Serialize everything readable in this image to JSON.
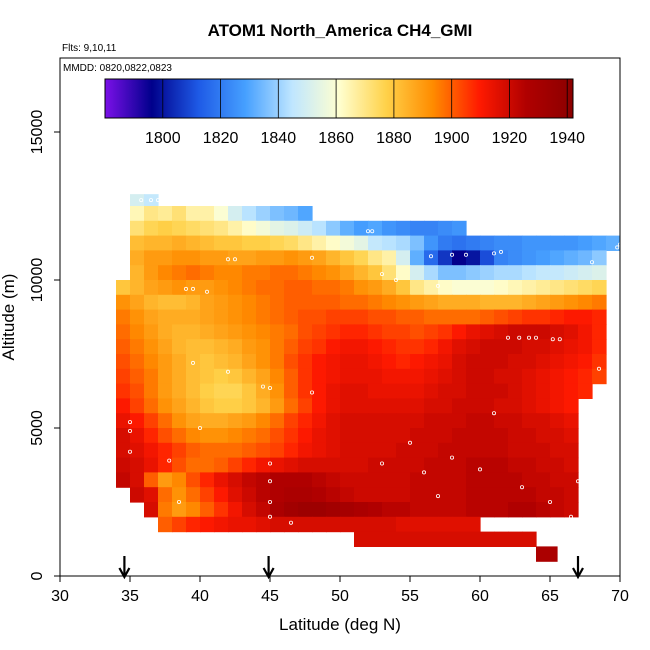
{
  "chart_data": {
    "type": "heatmap",
    "title": "ATOM1 North_America CH4_GMI",
    "annotations": {
      "flights": "Flts: 9,10,11",
      "dates": "MMDD: 0820,0822,0823"
    },
    "xlabel": "Latitude (deg N)",
    "ylabel": "Altitude (m)",
    "xlim": [
      30,
      70
    ],
    "ylim": [
      0,
      17500
    ],
    "x_ticks": [
      "30",
      "35",
      "40",
      "45",
      "50",
      "55",
      "60",
      "65",
      "70"
    ],
    "y_ticks": [
      "0",
      "5000",
      "10000",
      "15000"
    ],
    "colorbar": {
      "min": 1780,
      "max": 1942,
      "tick_labels": [
        "1800",
        "1820",
        "1840",
        "1860",
        "1880",
        "1900",
        "1920",
        "1940"
      ],
      "colors": [
        "#7b10e8",
        "#00008b",
        "#1e5ae6",
        "#46a0ff",
        "#bfe6ff",
        "#ffffd0",
        "#ffd24a",
        "#ff8c00",
        "#ff1a00",
        "#b00000",
        "#8b0000"
      ]
    },
    "arrows_at_latitude": [
      34.6,
      44.9,
      67.0
    ],
    "layers": [
      {
        "alt_bottom": 12500,
        "alt_top": 12900,
        "lat_start": 35.0,
        "lat_end": 37.0,
        "values": [
          1850,
          1846
        ]
      },
      {
        "alt_bottom": 12000,
        "alt_top": 12500,
        "lat_start": 35.0,
        "lat_end": 48.0,
        "values": [
          1864,
          1870,
          1868,
          1872,
          1866,
          1866,
          1860,
          1850,
          1844,
          1840,
          1836,
          1834,
          1830
        ]
      },
      {
        "alt_bottom": 11500,
        "alt_top": 12000,
        "lat_start": 35.0,
        "lat_end": 59.0,
        "values": [
          1872,
          1876,
          1878,
          1876,
          1874,
          1872,
          1870,
          1866,
          1862,
          1858,
          1854,
          1852,
          1848,
          1844,
          1838,
          1832,
          1828,
          1830,
          1826,
          1824,
          1822,
          1822,
          1824,
          1826
        ]
      },
      {
        "alt_bottom": 11000,
        "alt_top": 11500,
        "lat_start": 35.0,
        "lat_end": 70.0,
        "values": [
          1882,
          1884,
          1884,
          1886,
          1884,
          1882,
          1880,
          1880,
          1878,
          1878,
          1876,
          1874,
          1870,
          1866,
          1862,
          1858,
          1854,
          1846,
          1844,
          1842,
          1836,
          1826,
          1820,
          1818,
          1820,
          1822,
          1824,
          1824,
          1826,
          1826,
          1826,
          1826,
          1828,
          1830,
          1832
        ]
      },
      {
        "alt_bottom": 10500,
        "alt_top": 11000,
        "lat_start": 35.0,
        "lat_end": 69.0,
        "values": [
          1886,
          1890,
          1890,
          1892,
          1892,
          1890,
          1890,
          1888,
          1888,
          1890,
          1890,
          1892,
          1890,
          1888,
          1884,
          1880,
          1876,
          1870,
          1866,
          1850,
          1832,
          1816,
          1806,
          1796,
          1800,
          1810,
          1822,
          1824,
          1826,
          1828,
          1830,
          1832,
          1834,
          1838
        ]
      },
      {
        "alt_bottom": 10000,
        "alt_top": 10500,
        "lat_start": 35.0,
        "lat_end": 69.0,
        "values": [
          1884,
          1890,
          1894,
          1896,
          1898,
          1896,
          1894,
          1894,
          1896,
          1896,
          1898,
          1898,
          1896,
          1894,
          1892,
          1888,
          1884,
          1880,
          1872,
          1862,
          1850,
          1842,
          1836,
          1836,
          1838,
          1840,
          1842,
          1842,
          1844,
          1846,
          1846,
          1848,
          1850,
          1852
        ]
      },
      {
        "alt_bottom": 9500,
        "alt_top": 10000,
        "lat_start": 34.0,
        "lat_end": 69.0,
        "values": [
          1880,
          1884,
          1888,
          1890,
          1892,
          1890,
          1890,
          1892,
          1894,
          1896,
          1898,
          1898,
          1900,
          1900,
          1898,
          1898,
          1896,
          1892,
          1890,
          1886,
          1880,
          1870,
          1866,
          1862,
          1860,
          1860,
          1860,
          1862,
          1864,
          1866,
          1868,
          1870,
          1872,
          1874,
          1876
        ]
      },
      {
        "alt_bottom": 9000,
        "alt_top": 9500,
        "lat_start": 34.0,
        "lat_end": 69.0,
        "values": [
          1892,
          1888,
          1884,
          1882,
          1882,
          1884,
          1888,
          1890,
          1892,
          1894,
          1896,
          1898,
          1900,
          1900,
          1900,
          1900,
          1898,
          1898,
          1896,
          1894,
          1892,
          1890,
          1888,
          1886,
          1886,
          1886,
          1884,
          1884,
          1884,
          1886,
          1888,
          1890,
          1892,
          1894,
          1896
        ]
      },
      {
        "alt_bottom": 8500,
        "alt_top": 9000,
        "lat_start": 34.0,
        "lat_end": 69.0,
        "values": [
          1896,
          1892,
          1888,
          1886,
          1886,
          1886,
          1888,
          1890,
          1892,
          1894,
          1896,
          1898,
          1900,
          1902,
          1902,
          1904,
          1904,
          1904,
          1902,
          1902,
          1900,
          1900,
          1898,
          1898,
          1898,
          1898,
          1900,
          1902,
          1904,
          1906,
          1906,
          1908,
          1910,
          1910,
          1908
        ]
      },
      {
        "alt_bottom": 8000,
        "alt_top": 8500,
        "lat_start": 34.0,
        "lat_end": 69.0,
        "values": [
          1898,
          1894,
          1890,
          1886,
          1884,
          1884,
          1886,
          1888,
          1890,
          1892,
          1894,
          1896,
          1898,
          1902,
          1904,
          1906,
          1908,
          1908,
          1906,
          1904,
          1904,
          1902,
          1904,
          1906,
          1910,
          1914,
          1916,
          1918,
          1920,
          1920,
          1920,
          1918,
          1916,
          1912,
          1908
        ]
      },
      {
        "alt_bottom": 7500,
        "alt_top": 8000,
        "lat_start": 34.0,
        "lat_end": 69.0,
        "values": [
          1900,
          1896,
          1892,
          1888,
          1884,
          1882,
          1882,
          1884,
          1886,
          1890,
          1892,
          1896,
          1900,
          1904,
          1906,
          1910,
          1912,
          1912,
          1910,
          1908,
          1906,
          1906,
          1908,
          1912,
          1916,
          1918,
          1920,
          1920,
          1920,
          1918,
          1918,
          1916,
          1914,
          1912,
          1908
        ]
      },
      {
        "alt_bottom": 7000,
        "alt_top": 7500,
        "lat_start": 34.0,
        "lat_end": 69.0,
        "values": [
          1902,
          1898,
          1894,
          1890,
          1886,
          1882,
          1880,
          1882,
          1884,
          1888,
          1892,
          1896,
          1902,
          1906,
          1910,
          1912,
          1914,
          1914,
          1912,
          1910,
          1908,
          1910,
          1912,
          1914,
          1918,
          1920,
          1920,
          1920,
          1918,
          1918,
          1916,
          1914,
          1912,
          1910,
          1906
        ]
      },
      {
        "alt_bottom": 6500,
        "alt_top": 7000,
        "lat_start": 34.0,
        "lat_end": 69.0,
        "values": [
          1904,
          1900,
          1896,
          1890,
          1886,
          1882,
          1880,
          1878,
          1880,
          1884,
          1888,
          1894,
          1900,
          1906,
          1910,
          1912,
          1914,
          1914,
          1914,
          1912,
          1912,
          1912,
          1914,
          1916,
          1918,
          1920,
          1920,
          1918,
          1918,
          1916,
          1914,
          1912,
          1910,
          1908,
          1904
        ]
      },
      {
        "alt_bottom": 6000,
        "alt_top": 6500,
        "lat_start": 34.0,
        "lat_end": 68.0,
        "values": [
          1906,
          1902,
          1896,
          1890,
          1886,
          1882,
          1878,
          1876,
          1876,
          1880,
          1886,
          1892,
          1900,
          1906,
          1910,
          1914,
          1916,
          1916,
          1914,
          1914,
          1914,
          1914,
          1916,
          1918,
          1918,
          1920,
          1920,
          1920,
          1918,
          1916,
          1914,
          1912,
          1910,
          1908
        ]
      },
      {
        "alt_bottom": 5500,
        "alt_top": 6000,
        "lat_start": 34.0,
        "lat_end": 67.0,
        "values": [
          1910,
          1904,
          1898,
          1892,
          1888,
          1884,
          1880,
          1878,
          1878,
          1880,
          1884,
          1890,
          1898,
          1904,
          1910,
          1914,
          1916,
          1916,
          1916,
          1916,
          1916,
          1916,
          1918,
          1918,
          1920,
          1920,
          1920,
          1918,
          1918,
          1916,
          1914,
          1912,
          1910
        ]
      },
      {
        "alt_bottom": 5000,
        "alt_top": 5500,
        "lat_start": 34.0,
        "lat_end": 67.0,
        "values": [
          1914,
          1910,
          1904,
          1898,
          1892,
          1888,
          1886,
          1886,
          1888,
          1890,
          1894,
          1898,
          1904,
          1908,
          1912,
          1916,
          1918,
          1918,
          1918,
          1918,
          1918,
          1918,
          1920,
          1920,
          1920,
          1922,
          1922,
          1920,
          1920,
          1918,
          1918,
          1916,
          1914
        ]
      },
      {
        "alt_bottom": 4500,
        "alt_top": 5000,
        "lat_start": 34.0,
        "lat_end": 67.0,
        "values": [
          1918,
          1914,
          1908,
          1902,
          1898,
          1894,
          1892,
          1892,
          1894,
          1896,
          1898,
          1902,
          1906,
          1910,
          1914,
          1916,
          1918,
          1918,
          1918,
          1918,
          1918,
          1920,
          1920,
          1920,
          1922,
          1922,
          1922,
          1922,
          1920,
          1920,
          1918,
          1918,
          1916
        ]
      },
      {
        "alt_bottom": 4000,
        "alt_top": 4500,
        "lat_start": 34.0,
        "lat_end": 67.0,
        "values": [
          1918,
          1916,
          1912,
          1908,
          1904,
          1900,
          1898,
          1898,
          1898,
          1900,
          1902,
          1904,
          1908,
          1912,
          1914,
          1916,
          1918,
          1918,
          1918,
          1918,
          1920,
          1920,
          1920,
          1922,
          1922,
          1922,
          1922,
          1922,
          1920,
          1920,
          1920,
          1918,
          1918
        ]
      },
      {
        "alt_bottom": 3500,
        "alt_top": 4000,
        "lat_start": 34.0,
        "lat_end": 67.0,
        "values": [
          1920,
          1918,
          1914,
          1908,
          1902,
          1898,
          1898,
          1900,
          1904,
          1908,
          1912,
          1914,
          1916,
          1918,
          1918,
          1918,
          1918,
          1918,
          1920,
          1920,
          1920,
          1920,
          1922,
          1922,
          1922,
          1924,
          1924,
          1924,
          1922,
          1922,
          1920,
          1920,
          1918
        ]
      },
      {
        "alt_bottom": 3000,
        "alt_top": 3500,
        "lat_start": 34.0,
        "lat_end": 67.0,
        "values": [
          1922,
          1918,
          1900,
          1890,
          1894,
          1902,
          1908,
          1914,
          1918,
          1922,
          1924,
          1926,
          1926,
          1926,
          1924,
          1922,
          1920,
          1920,
          1920,
          1920,
          1920,
          1922,
          1922,
          1922,
          1922,
          1924,
          1924,
          1924,
          1924,
          1922,
          1922,
          1920,
          1920
        ]
      },
      {
        "alt_bottom": 2500,
        "alt_top": 3000,
        "lat_start": 35.0,
        "lat_end": 67.0,
        "values": [
          1920,
          1916,
          1898,
          1892,
          1898,
          1904,
          1910,
          1916,
          1920,
          1924,
          1926,
          1928,
          1928,
          1926,
          1924,
          1922,
          1920,
          1920,
          1920,
          1920,
          1922,
          1922,
          1922,
          1922,
          1924,
          1924,
          1924,
          1924,
          1924,
          1922,
          1922,
          1920
        ]
      },
      {
        "alt_bottom": 2000,
        "alt_top": 2500,
        "lat_start": 36.0,
        "lat_end": 67.0,
        "values": [
          1918,
          1896,
          1890,
          1894,
          1900,
          1906,
          1912,
          1918,
          1922,
          1928,
          1932,
          1934,
          1934,
          1932,
          1930,
          1928,
          1926,
          1924,
          1924,
          1922,
          1922,
          1922,
          1922,
          1924,
          1924,
          1924,
          1926,
          1926,
          1924,
          1922,
          1920
        ]
      },
      {
        "alt_bottom": 1500,
        "alt_top": 2000,
        "lat_start": 37.0,
        "lat_end": 60.0,
        "values": [
          1900,
          1904,
          1908,
          1910,
          1912,
          1914,
          1914,
          1916,
          1918,
          1918,
          1918,
          1918,
          1918,
          1918,
          1918,
          1918,
          1918,
          1916,
          1916,
          1916,
          1916,
          1916,
          1916
        ]
      },
      {
        "alt_bottom": 1000,
        "alt_top": 1500,
        "lat_start": 51.0,
        "lat_end": 64.0,
        "values": [
          1918,
          1918,
          1918,
          1918,
          1918,
          1918,
          1918,
          1918,
          1918,
          1918,
          1918,
          1918,
          1918
        ]
      },
      {
        "alt_bottom": 500,
        "alt_top": 1000,
        "lat_start": 64.0,
        "lat_end": 65.5,
        "values": [
          1928
        ]
      }
    ],
    "observations": [
      [
        35.8,
        12700
      ],
      [
        36.5,
        12700
      ],
      [
        37.0,
        12700
      ],
      [
        52.0,
        11650
      ],
      [
        52.3,
        11650
      ],
      [
        56.5,
        10800
      ],
      [
        58.0,
        10850
      ],
      [
        59.0,
        10850
      ],
      [
        61.0,
        10900
      ],
      [
        61.5,
        10950
      ],
      [
        68.0,
        10600
      ],
      [
        69.8,
        11100
      ],
      [
        70.0,
        11200
      ],
      [
        42.0,
        10700
      ],
      [
        42.5,
        10700
      ],
      [
        48.0,
        10750
      ],
      [
        39.0,
        9700
      ],
      [
        39.5,
        9700
      ],
      [
        40.5,
        9600
      ],
      [
        53.0,
        10200
      ],
      [
        54.0,
        10000
      ],
      [
        57.0,
        9800
      ],
      [
        62.0,
        8050
      ],
      [
        62.8,
        8050
      ],
      [
        63.5,
        8050
      ],
      [
        64.0,
        8050
      ],
      [
        65.2,
        8000
      ],
      [
        65.7,
        8000
      ],
      [
        68.5,
        7000
      ],
      [
        39.5,
        7200
      ],
      [
        42.0,
        6900
      ],
      [
        44.5,
        6400
      ],
      [
        45.0,
        6350
      ],
      [
        48.0,
        6200
      ],
      [
        35.0,
        5200
      ],
      [
        35.0,
        4900
      ],
      [
        35.0,
        4200
      ],
      [
        37.8,
        3900
      ],
      [
        38.5,
        2500
      ],
      [
        40.0,
        5000
      ],
      [
        45.0,
        3800
      ],
      [
        45.0,
        3200
      ],
      [
        45.0,
        2500
      ],
      [
        45.0,
        2000
      ],
      [
        46.5,
        1800
      ],
      [
        53.0,
        3800
      ],
      [
        55.0,
        4500
      ],
      [
        56.0,
        3500
      ],
      [
        57.0,
        2700
      ],
      [
        58.0,
        4000
      ],
      [
        60.0,
        3600
      ],
      [
        60.5,
        1800
      ],
      [
        61.0,
        5500
      ],
      [
        63.0,
        3000
      ],
      [
        65.0,
        2500
      ],
      [
        66.5,
        2000
      ],
      [
        67.0,
        3200
      ]
    ]
  }
}
